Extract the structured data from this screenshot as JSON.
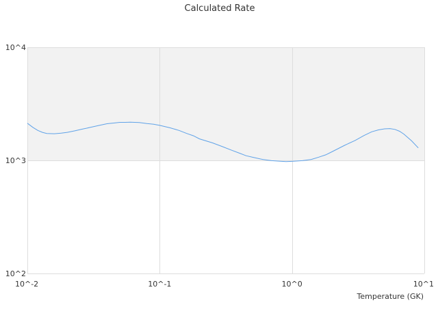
{
  "chart_data": {
    "type": "line",
    "title": "Calculated Rate",
    "xlabel": "Temperature (GK)",
    "ylabel": "",
    "x_scale": "log",
    "y_scale": "log",
    "xlim": [
      0.01,
      10
    ],
    "ylim": [
      100,
      10000
    ],
    "x_ticks": [
      "10^-2",
      "10^-1",
      "10^0",
      "10^1"
    ],
    "y_ticks": [
      "10^2",
      "10^3",
      "10^4"
    ],
    "shaded_band": [
      1000,
      10000
    ],
    "colors": {
      "line": "#5fa2e8",
      "band": "#f2f2f2",
      "grid": "#dddddd"
    },
    "series": [
      {
        "x": [
          0.01,
          0.011,
          0.012,
          0.013,
          0.014,
          0.016,
          0.018,
          0.02,
          0.023,
          0.026,
          0.03,
          0.035,
          0.04,
          0.045,
          0.05,
          0.055,
          0.06,
          0.07,
          0.08,
          0.09,
          0.1,
          0.12,
          0.14,
          0.16,
          0.18,
          0.2,
          0.25,
          0.3,
          0.35,
          0.4,
          0.45,
          0.5,
          0.6,
          0.7,
          0.8,
          0.9,
          1.0,
          1.2,
          1.4,
          1.6,
          1.8,
          2.0,
          2.5,
          3.0,
          3.5,
          4.0,
          4.5,
          5.0,
          5.5,
          6.0,
          6.5,
          7.0,
          8.0,
          9.0
        ],
        "y": [
          2130,
          1960,
          1840,
          1770,
          1730,
          1720,
          1740,
          1770,
          1830,
          1890,
          1960,
          2040,
          2110,
          2140,
          2170,
          2170,
          2180,
          2160,
          2120,
          2090,
          2040,
          1940,
          1840,
          1730,
          1650,
          1550,
          1430,
          1320,
          1230,
          1160,
          1100,
          1070,
          1020,
          995,
          985,
          975,
          980,
          995,
          1020,
          1070,
          1120,
          1190,
          1360,
          1500,
          1660,
          1790,
          1860,
          1900,
          1910,
          1880,
          1810,
          1710,
          1490,
          1290
        ]
      }
    ]
  }
}
